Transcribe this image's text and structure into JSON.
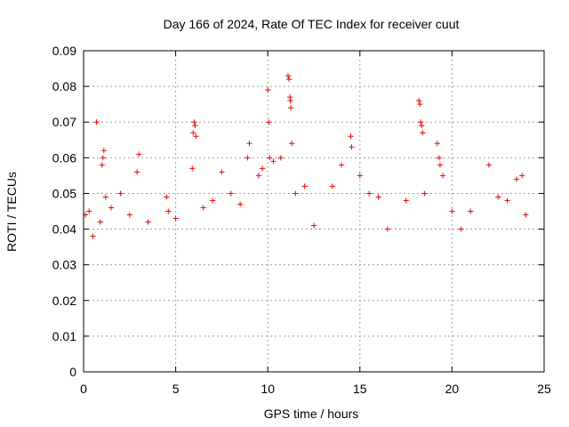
{
  "chart_data": {
    "type": "scatter",
    "title": "Day 166 of 2024, Rate Of TEC Index for receiver cuut",
    "xlabel": "GPS time / hours",
    "ylabel": "ROTI / TECUs",
    "xlim": [
      0,
      25
    ],
    "ylim": [
      0,
      0.09
    ],
    "x_ticks": [
      "0",
      "5",
      "10",
      "15",
      "20",
      "25"
    ],
    "y_ticks": [
      "0",
      "0.01",
      "0.02",
      "0.03",
      "0.04",
      "0.05",
      "0.06",
      "0.07",
      "0.08",
      "0.09"
    ],
    "grid": true,
    "marker": "+",
    "series_color": "#ff0000",
    "series": [
      {
        "points": [
          [
            0.1,
            0.044
          ],
          [
            0.3,
            0.045
          ],
          [
            0.5,
            0.038
          ],
          [
            0.7,
            0.07
          ],
          [
            0.9,
            0.042
          ],
          [
            1.0,
            0.058
          ],
          [
            1.05,
            0.06
          ],
          [
            1.1,
            0.062
          ],
          [
            1.2,
            0.049
          ],
          [
            1.5,
            0.046
          ],
          [
            2.0,
            0.05
          ],
          [
            2.5,
            0.044
          ],
          [
            2.9,
            0.056
          ],
          [
            3.0,
            0.061
          ],
          [
            3.5,
            0.042
          ],
          [
            4.5,
            0.049
          ],
          [
            4.6,
            0.045
          ],
          [
            5.0,
            0.043
          ],
          [
            5.9,
            0.057
          ],
          [
            5.95,
            0.067
          ],
          [
            6.0,
            0.07
          ],
          [
            6.05,
            0.069
          ],
          [
            6.1,
            0.066
          ],
          [
            6.5,
            0.046
          ],
          [
            7.0,
            0.048
          ],
          [
            7.5,
            0.056
          ],
          [
            8.0,
            0.05
          ],
          [
            8.5,
            0.047
          ],
          [
            8.9,
            0.06
          ],
          [
            9.0,
            0.064
          ],
          [
            9.5,
            0.055
          ],
          [
            9.7,
            0.057
          ],
          [
            10.0,
            0.079
          ],
          [
            10.05,
            0.07
          ],
          [
            10.1,
            0.06
          ],
          [
            10.3,
            0.059
          ],
          [
            10.7,
            0.06
          ],
          [
            11.1,
            0.083
          ],
          [
            11.15,
            0.082
          ],
          [
            11.2,
            0.077
          ],
          [
            11.22,
            0.076
          ],
          [
            11.25,
            0.074
          ],
          [
            11.3,
            0.064
          ],
          [
            11.5,
            0.05
          ],
          [
            12.0,
            0.052
          ],
          [
            12.5,
            0.041
          ],
          [
            13.5,
            0.052
          ],
          [
            14.0,
            0.058
          ],
          [
            14.5,
            0.066
          ],
          [
            14.55,
            0.063
          ],
          [
            15.0,
            0.055
          ],
          [
            15.5,
            0.05
          ],
          [
            16.0,
            0.049
          ],
          [
            16.5,
            0.04
          ],
          [
            17.5,
            0.048
          ],
          [
            18.2,
            0.076
          ],
          [
            18.25,
            0.075
          ],
          [
            18.3,
            0.07
          ],
          [
            18.35,
            0.069
          ],
          [
            18.4,
            0.067
          ],
          [
            18.5,
            0.05
          ],
          [
            19.2,
            0.064
          ],
          [
            19.3,
            0.06
          ],
          [
            19.35,
            0.058
          ],
          [
            19.5,
            0.055
          ],
          [
            20.0,
            0.045
          ],
          [
            20.5,
            0.04
          ],
          [
            21.0,
            0.045
          ],
          [
            22.0,
            0.058
          ],
          [
            22.5,
            0.049
          ],
          [
            23.0,
            0.048
          ],
          [
            23.5,
            0.054
          ],
          [
            23.8,
            0.055
          ],
          [
            24.0,
            0.044
          ]
        ]
      }
    ]
  }
}
